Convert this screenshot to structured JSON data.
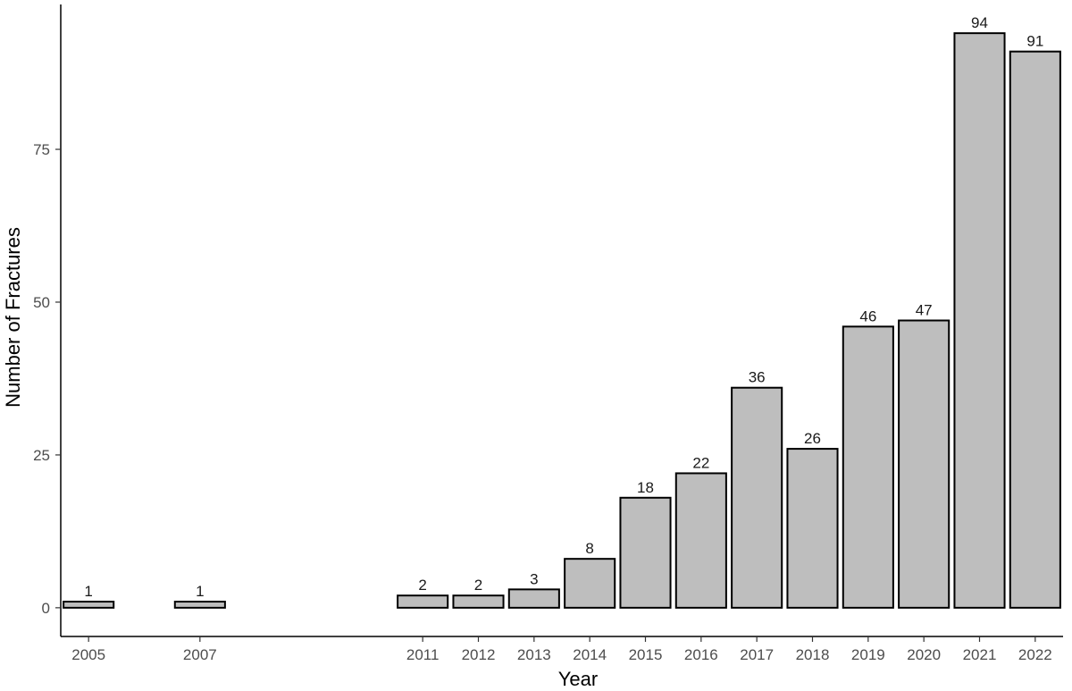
{
  "chart_data": {
    "type": "bar",
    "categories": [
      "2005",
      "2007",
      "2011",
      "2012",
      "2013",
      "2014",
      "2015",
      "2016",
      "2017",
      "2018",
      "2019",
      "2020",
      "2021",
      "2022"
    ],
    "values": [
      1,
      1,
      2,
      2,
      3,
      8,
      18,
      22,
      36,
      26,
      46,
      47,
      94,
      91
    ],
    "data_labels": [
      "1",
      "1",
      "2",
      "2",
      "3",
      "8",
      "18",
      "22",
      "36",
      "26",
      "46",
      "47",
      "94",
      "91"
    ],
    "title": "",
    "xlabel": "Year",
    "ylabel": "Number of Fractures",
    "x_range": [
      2004.5,
      2022.5
    ],
    "ylim": [
      -4.7,
      98.7
    ],
    "y_ticks": [
      0,
      25,
      50,
      75
    ],
    "y_tick_labels": [
      "0",
      "25",
      "50",
      "75"
    ],
    "grid": false,
    "legend": "none",
    "bar_fill": "#bebebe",
    "bar_stroke": "#000000"
  }
}
